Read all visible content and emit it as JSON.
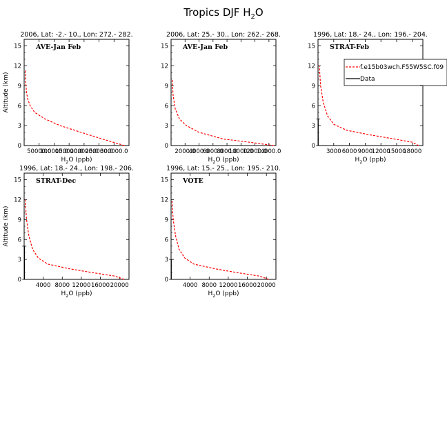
{
  "figure": {
    "title_main": "Tropics DJF H",
    "title_sub": "2",
    "title_tail": "O",
    "ylabel": "Altitude (km)",
    "xlabel_main": "H",
    "xlabel_sub": "2",
    "xlabel_tail": "O (ppb)",
    "model_color": "#ff0000",
    "data_color": "#000000"
  },
  "legend": {
    "model_label": "f.e15b03wch.F55W5SC.f09",
    "data_label": "Data"
  },
  "chart_data": [
    {
      "type": "line",
      "header": "2006, Lat: -2.- 10., Lon: 272.- 282.",
      "label": "AVE-Jan Feb",
      "xlim": [
        0,
        350000
      ],
      "ylim": [
        0,
        16
      ],
      "xticks": [
        50000,
        100000,
        150000,
        200000,
        250000,
        300000
      ],
      "xtick_labels": [
        "50000.0",
        "100000.0",
        "150000.0",
        "200000.0",
        "250000.0",
        "300000.0"
      ],
      "yticks": [
        0,
        3,
        6,
        9,
        12,
        15
      ],
      "ytick_labels": [
        "0",
        "3",
        "6",
        "9",
        "12",
        "15"
      ],
      "series": [
        {
          "name": "f.e15b03wch.F55W5SC.f09",
          "x": [
            335000,
            260000,
            190000,
            120000,
            70000,
            35000,
            20000,
            12000,
            8000,
            6000,
            5000,
            4500
          ],
          "y": [
            0,
            1,
            2,
            3,
            4,
            5,
            6,
            7,
            8,
            9,
            10,
            11.5
          ]
        }
      ]
    },
    {
      "type": "line",
      "header": "2006, Lat: 25.- 30., Lon: 262.- 268.",
      "label": "AVE-Jan Feb",
      "xlim": [
        0,
        15000
      ],
      "ylim": [
        0,
        16
      ],
      "xticks": [
        2000,
        4000,
        6000,
        8000,
        10000,
        12000,
        14000
      ],
      "xtick_labels": [
        "2000.0",
        "4000.0",
        "6000.0",
        "8000.0",
        "10000.0",
        "12000.0",
        "14000.0"
      ],
      "yticks": [
        0,
        3,
        6,
        9,
        12,
        15
      ],
      "ytick_labels": [
        "0",
        "3",
        "6",
        "9",
        "12",
        "15"
      ],
      "series": [
        {
          "name": "f.e15b03wch.F55W5SC.f09",
          "x": [
            14700,
            11200,
            7400,
            4000,
            2200,
            1200,
            600,
            300,
            150
          ],
          "y": [
            0,
            0.5,
            1,
            2,
            3,
            4,
            5.5,
            7.5,
            10
          ]
        }
      ]
    },
    {
      "type": "line",
      "header": "1996, Lat: 18.- 24., Lon: 196.- 204.",
      "label": "STRAT-Feb",
      "xlim": [
        0,
        20000
      ],
      "ylim": [
        0,
        16
      ],
      "xticks": [
        3000,
        6000,
        9000,
        12000,
        15000,
        18000
      ],
      "xtick_labels": [
        "3000",
        "6000",
        "9000",
        "12000",
        "15000",
        "18000"
      ],
      "yticks": [
        0,
        3,
        6,
        9,
        12,
        15
      ],
      "ytick_labels": [
        "0",
        "3",
        "6",
        "9",
        "12",
        "15"
      ],
      "series": [
        {
          "name": "f.e15b03wch.F55W5SC.f09",
          "x": [
            19200,
            18000,
            14500,
            10000,
            5500,
            3000,
            1800,
            1000,
            500,
            250
          ],
          "y": [
            0,
            0.5,
            1,
            1.6,
            2.3,
            3.2,
            4.5,
            6.5,
            9,
            12
          ]
        },
        {
          "name": "Data",
          "x": [
            30,
            30
          ],
          "y": [
            0,
            4
          ]
        }
      ]
    },
    {
      "type": "line",
      "header": "1996, Lat: 18.- 24., Lon: 198.- 206.",
      "label": "STRAT-Dec",
      "xlim": [
        0,
        22000
      ],
      "ylim": [
        0,
        16
      ],
      "xticks": [
        4000,
        8000,
        12000,
        16000,
        20000
      ],
      "xtick_labels": [
        "4000",
        "8000",
        "12000",
        "16000",
        "20000"
      ],
      "yticks": [
        0,
        3,
        6,
        9,
        12,
        15
      ],
      "ytick_labels": [
        "0",
        "3",
        "6",
        "9",
        "12",
        "15"
      ],
      "series": [
        {
          "name": "f.e15b03wch.F55W5SC.f09",
          "x": [
            21000,
            19000,
            14500,
            9500,
            5000,
            3000,
            1800,
            1000,
            500,
            200
          ],
          "y": [
            0,
            0.5,
            1,
            1.6,
            2.3,
            3.2,
            4.5,
            6.5,
            9,
            12
          ]
        },
        {
          "name": "Data",
          "x": [
            40,
            40
          ],
          "y": [
            0,
            5
          ]
        }
      ]
    },
    {
      "type": "line",
      "header": "1996, Lat: 15.- 25., Lon: 195.- 210.",
      "label": "VOTE",
      "xlim": [
        0,
        22000
      ],
      "ylim": [
        0,
        16
      ],
      "xticks": [
        4000,
        8000,
        12000,
        16000,
        20000
      ],
      "xtick_labels": [
        "4000",
        "8000",
        "12000",
        "16000",
        "20000"
      ],
      "yticks": [
        0,
        3,
        6,
        9,
        12,
        15
      ],
      "ytick_labels": [
        "0",
        "3",
        "6",
        "9",
        "12",
        "15"
      ],
      "series": [
        {
          "name": "f.e15b03wch.F55W5SC.f09",
          "x": [
            20500,
            18500,
            14000,
            9200,
            4800,
            2900,
            1700,
            950,
            450,
            180
          ],
          "y": [
            0,
            0.5,
            1,
            1.6,
            2.3,
            3.2,
            4.5,
            6.5,
            9,
            12
          ]
        },
        {
          "name": "Data",
          "x": [
            30,
            30
          ],
          "y": [
            0,
            3
          ]
        }
      ]
    }
  ]
}
